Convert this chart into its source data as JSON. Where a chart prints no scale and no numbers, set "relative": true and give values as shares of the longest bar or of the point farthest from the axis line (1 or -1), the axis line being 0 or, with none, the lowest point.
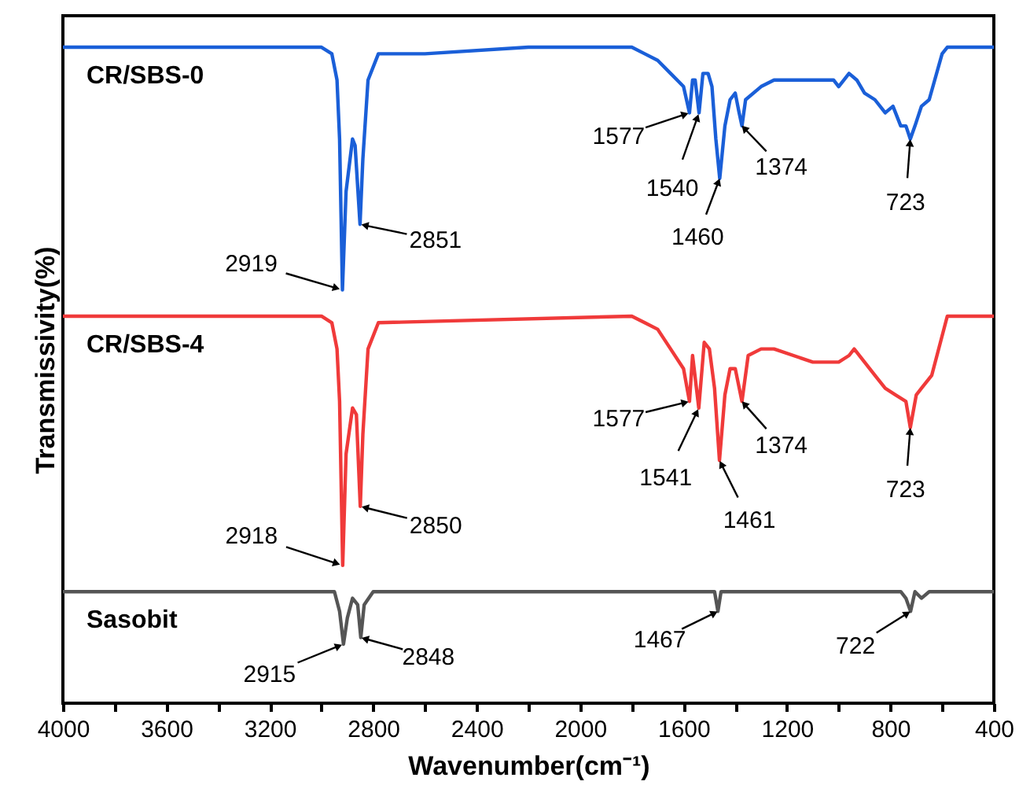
{
  "chart_data": {
    "type": "line",
    "relative": true,
    "xlabel": "Wavenumber(cm⁻¹)",
    "ylabel": "Transmissivity(%)",
    "xlim": [
      4000,
      400
    ],
    "xticks": [
      4000,
      {
        "value": 3800,
        "label": null
      },
      3600,
      {
        "value": 3400,
        "label": null
      },
      3200,
      {
        "value": 3000,
        "label": null
      },
      2800,
      {
        "value": 2600,
        "label": null
      },
      2400,
      {
        "value": 2200,
        "label": null
      },
      2000,
      {
        "value": 1800,
        "label": null
      },
      1600,
      {
        "value": 1400,
        "label": null
      },
      1200,
      {
        "value": 1000,
        "label": null
      },
      800,
      {
        "value": 600,
        "label": null
      },
      400
    ],
    "grid": false,
    "tick_labels": "x",
    "marker": "none",
    "line_style": "solid",
    "series": [
      {
        "name": "CR/SBS-0",
        "color": "#1a5fd8",
        "x": [
          4000,
          3000,
          2960,
          2940,
          2930,
          2919,
          2905,
          2880,
          2870,
          2851,
          2840,
          2820,
          2780,
          2600,
          2200,
          1800,
          1750,
          1700,
          1650,
          1600,
          1577,
          1565,
          1555,
          1540,
          1525,
          1505,
          1490,
          1475,
          1460,
          1440,
          1420,
          1400,
          1385,
          1374,
          1360,
          1300,
          1250,
          1200,
          1100,
          1020,
          1000,
          960,
          930,
          900,
          860,
          820,
          790,
          760,
          740,
          723,
          705,
          680,
          650,
          600,
          580,
          400
        ],
        "values": [
          1.0,
          1.0,
          0.99,
          0.95,
          0.86,
          0.63,
          0.78,
          0.86,
          0.85,
          0.73,
          0.83,
          0.95,
          0.99,
          0.99,
          1.0,
          1.0,
          0.99,
          0.98,
          0.96,
          0.94,
          0.9,
          0.95,
          0.95,
          0.9,
          0.96,
          0.96,
          0.94,
          0.86,
          0.8,
          0.88,
          0.92,
          0.93,
          0.9,
          0.88,
          0.92,
          0.94,
          0.95,
          0.95,
          0.95,
          0.95,
          0.94,
          0.96,
          0.95,
          0.93,
          0.92,
          0.9,
          0.91,
          0.88,
          0.88,
          0.86,
          0.88,
          0.91,
          0.92,
          0.99,
          1.0,
          1.0
        ]
      },
      {
        "name": "CR/SBS-4",
        "color": "#f03a3a",
        "x": [
          4000,
          3000,
          2960,
          2940,
          2930,
          2918,
          2905,
          2880,
          2865,
          2850,
          2840,
          2820,
          2780,
          1800,
          1750,
          1700,
          1650,
          1600,
          1577,
          1565,
          1541,
          1520,
          1500,
          1480,
          1461,
          1440,
          1420,
          1400,
          1374,
          1350,
          1300,
          1250,
          1100,
          1000,
          960,
          940,
          900,
          860,
          820,
          780,
          740,
          723,
          700,
          680,
          640,
          580,
          400
        ],
        "values": [
          0.59,
          0.59,
          0.58,
          0.54,
          0.46,
          0.21,
          0.38,
          0.45,
          0.44,
          0.3,
          0.41,
          0.54,
          0.58,
          0.59,
          0.58,
          0.57,
          0.54,
          0.51,
          0.46,
          0.53,
          0.45,
          0.55,
          0.54,
          0.48,
          0.37,
          0.47,
          0.51,
          0.51,
          0.46,
          0.53,
          0.54,
          0.54,
          0.52,
          0.52,
          0.53,
          0.54,
          0.52,
          0.5,
          0.48,
          0.47,
          0.46,
          0.42,
          0.47,
          0.48,
          0.5,
          0.59,
          0.59
        ]
      },
      {
        "name": "Sasobit",
        "color": "#555555",
        "x": [
          4000,
          3000,
          2950,
          2930,
          2915,
          2900,
          2880,
          2860,
          2848,
          2835,
          2800,
          1500,
          1480,
          1467,
          1455,
          1400,
          760,
          740,
          722,
          705,
          680,
          650,
          400
        ],
        "values": [
          0.17,
          0.17,
          0.17,
          0.14,
          0.09,
          0.13,
          0.16,
          0.15,
          0.1,
          0.15,
          0.17,
          0.17,
          0.17,
          0.14,
          0.17,
          0.17,
          0.17,
          0.16,
          0.14,
          0.17,
          0.16,
          0.17,
          0.17
        ]
      }
    ],
    "annotations": [
      {
        "text": "2919",
        "x": 2919,
        "y": 0.63
      },
      {
        "text": "2851",
        "x": 2851,
        "y": 0.73
      },
      {
        "text": "1577",
        "x": 1577,
        "y": 0.9
      },
      {
        "text": "1540",
        "x": 1540,
        "y": 0.9
      },
      {
        "text": "1460",
        "x": 1460,
        "y": 0.8
      },
      {
        "text": "1374",
        "x": 1374,
        "y": 0.88
      },
      {
        "text": "723",
        "x": 723,
        "y": 0.86
      },
      {
        "text": "2918",
        "x": 2918,
        "y": 0.21
      },
      {
        "text": "2850",
        "x": 2850,
        "y": 0.3
      },
      {
        "text": "1577",
        "x": 1577,
        "y": 0.46
      },
      {
        "text": "1541",
        "x": 1541,
        "y": 0.45
      },
      {
        "text": "1461",
        "x": 1461,
        "y": 0.37
      },
      {
        "text": "1374",
        "x": 1374,
        "y": 0.46
      },
      {
        "text": "723",
        "x": 723,
        "y": 0.42
      },
      {
        "text": "2915",
        "x": 2915,
        "y": 0.09
      },
      {
        "text": "2848",
        "x": 2848,
        "y": 0.1
      },
      {
        "text": "1467",
        "x": 1467,
        "y": 0.14
      },
      {
        "text": "722",
        "x": 722,
        "y": 0.14
      }
    ]
  }
}
